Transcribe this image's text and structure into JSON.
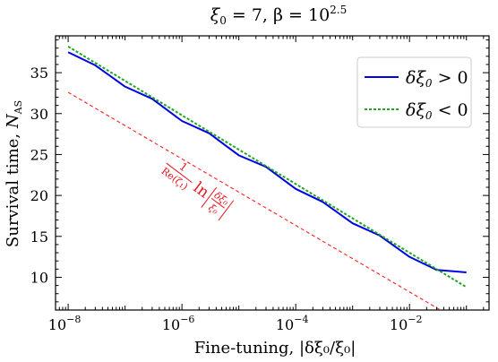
{
  "chart_data": {
    "type": "line",
    "title": "ξ₀ = 7,  β = 10^2.5",
    "title_parts": {
      "lhs": "ξ",
      "sub": "0",
      "eq": " = 7,  β = 10",
      "sup": "2.5"
    },
    "xlabel": "Fine-tuning, |δξ₀/ξ₀|",
    "ylabel": "Survival time, N_AS",
    "ylabel_parts": {
      "main": "Survival time, ",
      "sym": "N",
      "sub": "AS"
    },
    "xscale": "log",
    "xlim": [
      6e-09,
      0.25
    ],
    "ylim": [
      6.0,
      39.5
    ],
    "x_ticks": [
      {
        "value": 1e-08,
        "base": "10",
        "exp": "−8"
      },
      {
        "value": 1e-06,
        "base": "10",
        "exp": "−6"
      },
      {
        "value": 0.0001,
        "base": "10",
        "exp": "−4"
      },
      {
        "value": 0.01,
        "base": "10",
        "exp": "−2"
      }
    ],
    "y_ticks": [
      10,
      15,
      20,
      25,
      30,
      35
    ],
    "grid": false,
    "legend_position": "top-right",
    "series": [
      {
        "name": "δξ₀ > 0",
        "legend_parts": {
          "sym": "δξ",
          "sub": "0",
          "rel": " > 0"
        },
        "color": "#0000e6",
        "style": "solid",
        "x": [
          1e-08,
          3e-08,
          1e-07,
          3e-07,
          1e-06,
          3e-06,
          1e-05,
          3e-05,
          0.0001,
          0.0003,
          0.001,
          0.003,
          0.01,
          0.03,
          0.1
        ],
        "y": [
          37.5,
          35.9,
          33.3,
          31.8,
          29.1,
          27.6,
          24.9,
          23.5,
          20.8,
          19.2,
          16.6,
          15.1,
          12.5,
          10.9,
          10.6
        ]
      },
      {
        "name": "δξ₀ < 0",
        "legend_parts": {
          "sym": "δξ",
          "sub": "0",
          "rel": " < 0"
        },
        "color": "#1ea61e",
        "style": "dashed",
        "x": [
          1e-08,
          0.1
        ],
        "y": [
          38.2,
          8.8
        ]
      },
      {
        "name": "",
        "color": "#ff2020",
        "style": "dashed-thin",
        "x": [
          1e-08,
          0.035
        ],
        "y": [
          32.6,
          6.0
        ]
      }
    ],
    "annotation": {
      "numerator": "1",
      "denominator": "Re(ζ₁)",
      "ln": "ln",
      "inner_numerator": "δξ₀",
      "inner_denominator": "ξ₀",
      "color": "#e8141c",
      "rotation_deg": 37
    }
  }
}
